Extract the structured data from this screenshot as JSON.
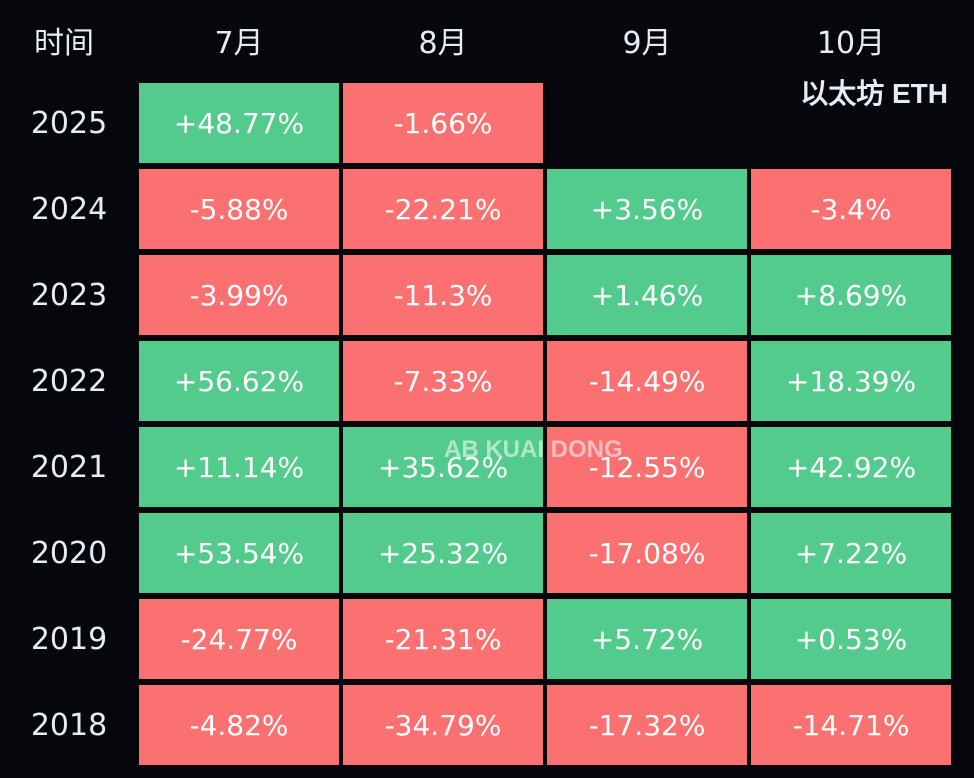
{
  "chart_data": {
    "type": "table",
    "corner_label": "时间",
    "columns": [
      "7月",
      "8月",
      "9月",
      "10月"
    ],
    "rows": [
      {
        "year": "2025",
        "values": [
          "+48.77%",
          "-1.66%",
          "",
          ""
        ]
      },
      {
        "year": "2024",
        "values": [
          "-5.88%",
          "-22.21%",
          "+3.56%",
          "-3.4%"
        ]
      },
      {
        "year": "2023",
        "values": [
          "-3.99%",
          "-11.3%",
          "+1.46%",
          "+8.69%"
        ]
      },
      {
        "year": "2022",
        "values": [
          "+56.62%",
          "-7.33%",
          "-14.49%",
          "+18.39%"
        ]
      },
      {
        "year": "2021",
        "values": [
          "+11.14%",
          "+35.62%",
          "-12.55%",
          "+42.92%"
        ]
      },
      {
        "year": "2020",
        "values": [
          "+53.54%",
          "+25.32%",
          "-17.08%",
          "+7.22%"
        ]
      },
      {
        "year": "2019",
        "values": [
          "-24.77%",
          "-21.31%",
          "+5.72%",
          "+0.53%"
        ]
      },
      {
        "year": "2018",
        "values": [
          "-4.82%",
          "-34.79%",
          "-17.32%",
          "-14.71%"
        ]
      }
    ],
    "colors": {
      "positive": "#52cb8c",
      "negative": "#fb7071",
      "background": "#06070c"
    },
    "brand_label": "以太坊 ETH",
    "watermark": "AB KUAI DONG"
  }
}
